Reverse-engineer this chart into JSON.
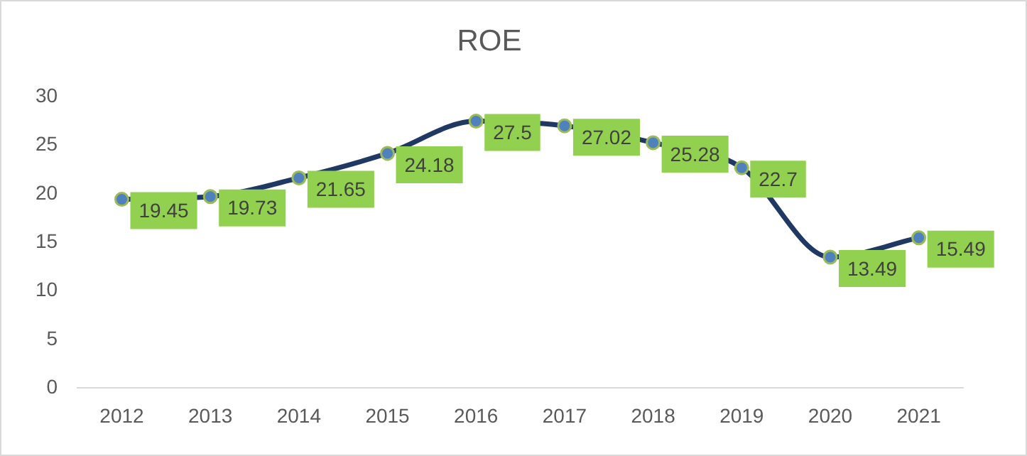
{
  "chart_data": {
    "type": "line",
    "title": "ROE",
    "categories": [
      "2012",
      "2013",
      "2014",
      "2015",
      "2016",
      "2017",
      "2018",
      "2019",
      "2020",
      "2021"
    ],
    "series": [
      {
        "color": "#1f3864",
        "values": [
          19.45,
          19.73,
          21.65,
          24.18,
          27.5,
          27.02,
          25.28,
          22.7,
          13.49,
          15.49
        ]
      }
    ],
    "ylim": [
      0,
      30
    ],
    "yticks": [
      0,
      5,
      10,
      15,
      20,
      25,
      30
    ],
    "marker": "circle",
    "data_labels": true
  }
}
